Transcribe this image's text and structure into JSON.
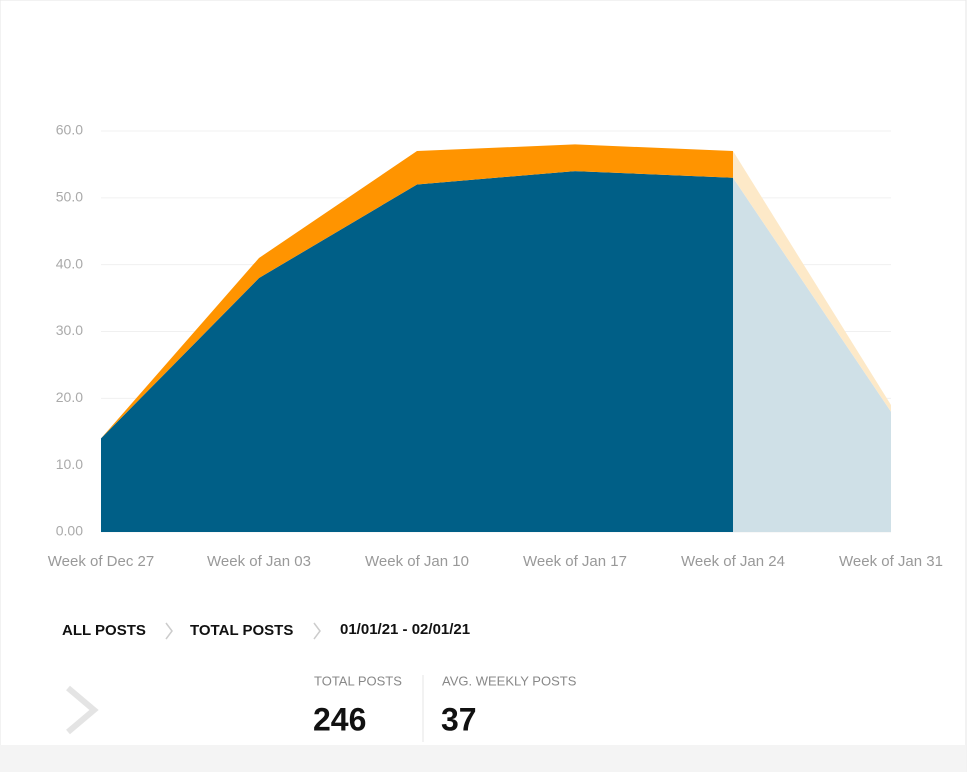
{
  "chart_data": {
    "type": "stacked_area",
    "categories": [
      "Week of Dec 27",
      "Week of Jan 03",
      "Week of Jan 10",
      "Week of Jan 17",
      "Week of Jan 24",
      "Week of Jan 31"
    ],
    "series": [
      {
        "color": "#005f87",
        "faded_color": "#cfe0e7",
        "values": [
          14,
          38,
          52,
          54,
          53,
          18
        ]
      },
      {
        "color": "#ff9400",
        "faded_color": "#fde9c8",
        "values": [
          0,
          3,
          5,
          4,
          4,
          1
        ]
      }
    ],
    "ylim": [
      0,
      60
    ],
    "yticks": [
      {
        "value": 0,
        "label": "0.00"
      },
      {
        "value": 10,
        "label": "10.0"
      },
      {
        "value": 20,
        "label": "20.0"
      },
      {
        "value": 30,
        "label": "30.0"
      },
      {
        "value": 40,
        "label": "40.0"
      },
      {
        "value": 50,
        "label": "50.0"
      },
      {
        "value": 60,
        "label": "60.0"
      }
    ],
    "grid": true
  },
  "breadcrumb": [
    "ALL POSTS",
    "TOTAL POSTS",
    "01/01/21 - 02/01/21"
  ],
  "stats": [
    {
      "label": "TOTAL POSTS",
      "value": 246
    },
    {
      "label": "AVG. WEEKLY POSTS",
      "value": 37
    }
  ]
}
